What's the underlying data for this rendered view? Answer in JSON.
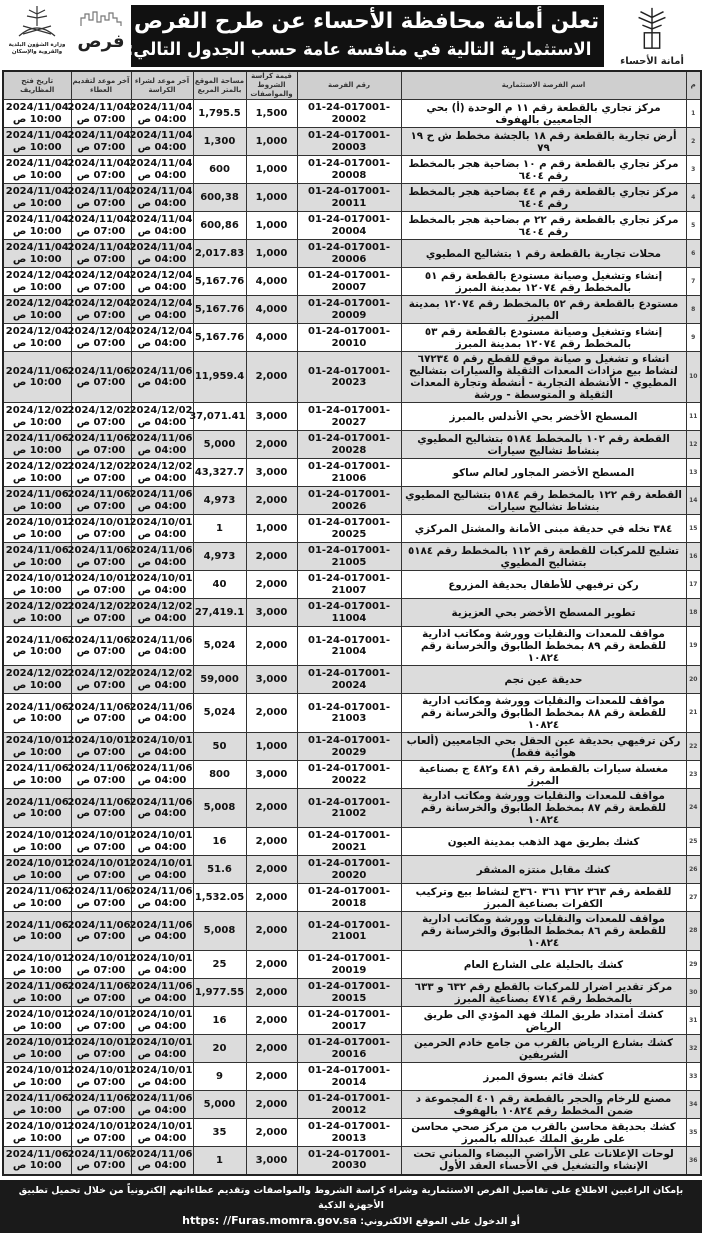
{
  "header": {
    "title_line1": "تعلن أمانة محافظة الأحساء عن طرح الفرص",
    "title_line2": "الاستثمارية التالية في منافسة عامة حسب الجدول التالي:",
    "logo_right": "أمانة الأحساء",
    "logo_furas": "فرص",
    "logo_ministry": "وزارة الشؤون البلدية والقروية والإسكان"
  },
  "columns": {
    "num": "م",
    "name": "اسم الفرصة الاستثمارية",
    "number": "رقم الفرصة",
    "fee": "قيمة كراسة الشروط والمواصفات",
    "area": "مساحة الموقع بالمتر المربع",
    "purchase": "آخر موعد لشراء الكراسة",
    "submit": "آخر موعد لتقديم العطاء",
    "open": "تاريخ فتح المظاريف"
  },
  "times": {
    "purchase": "04:00 ص",
    "submit": "07:00 ص",
    "open": "10:00 ص"
  },
  "rows": [
    {
      "n": "1",
      "name": "مركز تجاري بالقطعة رقم ١١ م الوحدة (أ) بحي الجامعيين بالهفوف",
      "id": "01-24-017001-20002",
      "fee": "1,500",
      "area": "1,795.5",
      "date": "2024/11/04"
    },
    {
      "n": "2",
      "name": "أرض تجارية بالقطعة رقم ١٨ بالجشة مخطط ش ح ١٩ ٧٩",
      "id": "01-24-017001-20003",
      "fee": "1,000",
      "area": "1,300",
      "date": "2024/11/04"
    },
    {
      "n": "3",
      "name": "مركز تجاري بالقطعة رقم م ١٠ بضاحية هجر بالمخطط رقم ٦٤٠٤",
      "id": "01-24-017001-20008",
      "fee": "1,000",
      "area": "600",
      "date": "2024/11/04"
    },
    {
      "n": "4",
      "name": "مركز تجاري بالقطعة رقم م ٤٤ بضاحية هجر بالمخطط رقم ٦٤٠٤",
      "id": "01-24-017001-20011",
      "fee": "1,000",
      "area": "600,38",
      "date": "2024/11/04"
    },
    {
      "n": "5",
      "name": "مركز تجاري بالقطعة رقم ٢٢ م بضاحية هجر بالمخطط رقم ٦٤٠٤",
      "id": "01-24-017001-20004",
      "fee": "1,000",
      "area": "600,86",
      "date": "2024/11/04"
    },
    {
      "n": "6",
      "name": "محلات تجارية بالقطعة رقم ١ بتشاليح المطيوي",
      "id": "01-24-017001-20006",
      "fee": "1,000",
      "area": "2,017.83",
      "date": "2024/11/04"
    },
    {
      "n": "7",
      "name": "إنشاء وتشغيل وصيانة مستودع بالقطعة رقم ٥١ بالمخطط رقم ١٢٠٧٤ بمدينة المبرز",
      "id": "01-24-017001-20007",
      "fee": "4,000",
      "area": "5,167.76",
      "date": "2024/12/04"
    },
    {
      "n": "8",
      "name": "مستودع بالقطعة رقم ٥٢ بالمخطط رقم ١٢٠٧٤ بمدينة المبرز",
      "id": "01-24-017001-20009",
      "fee": "4,000",
      "area": "5,167.76",
      "date": "2024/12/04"
    },
    {
      "n": "9",
      "name": "إنشاء وتشغيل وصيانة مستودع بالقطعة رقم ٥٣ بالمخطط رقم ١٢٠٧٤ بمدينة المبرز",
      "id": "01-24-017001-20010",
      "fee": "4,000",
      "area": "5,167.76",
      "date": "2024/12/04"
    },
    {
      "n": "10",
      "name": "انشاء و تشغيل و صيانة موقع للقطع رقم ٥ ٦٧٢٣٤ لنشاط بيع مزادات المعدات الثقيلة والسيارات بتشاليح المطيوي - الأنشطة التجارية - أنشطة وتجارة المعدات الثقيلة و المتوسطة - ورشة",
      "id": "01-24-017001-20023",
      "fee": "2,000",
      "area": "11,959.4",
      "date": "2024/11/06"
    },
    {
      "n": "11",
      "name": "المسطح الأخضر بحي الأندلس بالمبرز",
      "id": "01-24-017001-20027",
      "fee": "3,000",
      "area": "37,071.41",
      "date": "2024/12/02"
    },
    {
      "n": "12",
      "name": "القطعة رقم ١٠٢ بالمخطط ٥١٨٤ بتشاليح المطيوي بنشاط تشاليح سيارات",
      "id": "01-24-017001-20028",
      "fee": "2,000",
      "area": "5,000",
      "date": "2024/11/06"
    },
    {
      "n": "13",
      "name": "المسطح الأخضر المجاور لعالم ساكو",
      "id": "01-24-017001-21006",
      "fee": "3,000",
      "area": "43,327.7",
      "date": "2024/12/02"
    },
    {
      "n": "14",
      "name": "القطعة رقم ١٢٢ بالمخطط رقم ٥١٨٤ بتشاليح المطيوي بنشاط تشاليح سيارات",
      "id": "01-24-017001-20026",
      "fee": "2,000",
      "area": "4,973",
      "date": "2024/11/06"
    },
    {
      "n": "15",
      "name": "٣٨٤ نخله في حديقة مبنى الأمانة والمشتل المركزي",
      "id": "01-24-017001-20025",
      "fee": "1,000",
      "area": "1",
      "date": "2024/10/01"
    },
    {
      "n": "16",
      "name": "تشليح للمركبات للقطعة رقم ١١٢ بالمخطط رقم ٥١٨٤ بتشاليح المطيوي",
      "id": "01-24-017001-21005",
      "fee": "2,000",
      "area": "4,973",
      "date": "2024/11/06"
    },
    {
      "n": "17",
      "name": "ركن ترفيهي للأطفال بحديقة المزروع",
      "id": "01-24-017001-21007",
      "fee": "2,000",
      "area": "40",
      "date": "2024/10/01"
    },
    {
      "n": "18",
      "name": "تطوير المسطح الأخضر بحي العزيزية",
      "id": "01-24-017001-11004",
      "fee": "3,000",
      "area": "27,419.1",
      "date": "2024/12/02"
    },
    {
      "n": "19",
      "name": "مواقف للمعدات والنقليات وورشة ومكاتب ادارية للقطعة رقم ٨٩ بمخطط الطابوق والخرسانة رقم ١٠٨٢٤",
      "id": "01-24-017001-21004",
      "fee": "2,000",
      "area": "5,024",
      "date": "2024/11/06"
    },
    {
      "n": "20",
      "name": "حديقة عين نجم",
      "id": "01-24-017001-20024",
      "fee": "3,000",
      "area": "59,000",
      "date": "2024/12/02"
    },
    {
      "n": "21",
      "name": "مواقف للمعدات والنقليات وورشة ومكاتب ادارية للقطعة رقم ٨٨ بمخطط الطابوق والخرسانة رقم ١٠٨٢٤",
      "id": "01-24-017001-21003",
      "fee": "2,000",
      "area": "5,024",
      "date": "2024/11/06"
    },
    {
      "n": "22",
      "name": "ركن ترفيهي بحديقة عين الحقل بحي الجامعيين (ألعاب هوائية فقط)",
      "id": "01-24-017001-20029",
      "fee": "1,000",
      "area": "50",
      "date": "2024/10/01"
    },
    {
      "n": "23",
      "name": "مغسلة سيارات بالقطعة رقم ٤٨١ و٤٨٢ ج بصناعية المبرز",
      "id": "01-24-017001-20022",
      "fee": "3,000",
      "area": "800",
      "date": "2024/11/06"
    },
    {
      "n": "24",
      "name": "مواقف للمعدات والنقليات وورشة ومكاتب ادارية للقطعة رقم ٨٧ بمخطط الطابوق والخرسانة رقم ١٠٨٢٤",
      "id": "01-24-017001-21002",
      "fee": "2,000",
      "area": "5,008",
      "date": "2024/11/06"
    },
    {
      "n": "25",
      "name": "كشك بطريق مهد الذهب بمدينة العيون",
      "id": "01-24-017001-20021",
      "fee": "2,000",
      "area": "16",
      "date": "2024/10/01"
    },
    {
      "n": "26",
      "name": "كشك مقابل منتزه المشقر",
      "id": "01-24-017001-20020",
      "fee": "2,000",
      "area": "51.6",
      "date": "2024/10/01"
    },
    {
      "n": "27",
      "name": "للقطعة رقم ٣٦٣ ٣٦٢ ٣٦١ ٣٦٠ج لنشاط بيع وتركيب الكفرات بصناعية المبرز",
      "id": "01-24-017001-20018",
      "fee": "2,000",
      "area": "1,532.05",
      "date": "2024/11/06"
    },
    {
      "n": "28",
      "name": "مواقف للمعدات والنقليات وورشة ومكاتب ادارية للقطعة رقم ٨٦ بمخطط الطابوق والخرسانة رقم ١٠٨٢٤",
      "id": "01-24-017001-21001",
      "fee": "2,000",
      "area": "5,008",
      "date": "2024/11/06"
    },
    {
      "n": "29",
      "name": "كشك بالحليلة على الشارع العام",
      "id": "01-24-017001-20019",
      "fee": "2,000",
      "area": "25",
      "date": "2024/10/01"
    },
    {
      "n": "30",
      "name": "مركز تقدير اضرار للمركبات بالقطع رقم ٦٣٢ و ٦٣٣ بالمخطط رقم ٤٧١٤ بصناعية المبرز",
      "id": "01-24-017001-20015",
      "fee": "2,000",
      "area": "1,977.55",
      "date": "2024/11/06"
    },
    {
      "n": "31",
      "name": "كشك أمتداد طريق الملك فهد المؤدي الى طريق الرياض",
      "id": "01-24-017001-20017",
      "fee": "2,000",
      "area": "16",
      "date": "2024/10/01"
    },
    {
      "n": "32",
      "name": "كشك بشارع الرياض بالقرب من جامع خادم الحرمين الشريفين",
      "id": "01-24-017001-20016",
      "fee": "2,000",
      "area": "20",
      "date": "2024/10/01"
    },
    {
      "n": "33",
      "name": "كشك قائم بسوق المبرز",
      "id": "01-24-017001-20014",
      "fee": "2,000",
      "area": "9",
      "date": "2024/10/01"
    },
    {
      "n": "34",
      "name": "مصنع للرخام والحجر بالقطعة رقم ٤٠١ المجموعة د ضمن المخطط رقم ١٠٨٢٤ بالهفوف",
      "id": "01-24-017001-20012",
      "fee": "2,000",
      "area": "5,000",
      "date": "2024/11/06"
    },
    {
      "n": "35",
      "name": "كشك بحديقة محاسن بالقرب من مركز صحي محاسن على طريق الملك عبدالله بالمبرز",
      "id": "01-24-017001-20013",
      "fee": "2,000",
      "area": "35",
      "date": "2024/10/01"
    },
    {
      "n": "36",
      "name": "لوحات الإعلانات على الأراضي البيضاء والمباني تحت الإنشاء والتشغيل في الأحساء العقد الأول",
      "id": "01-24-017001-20030",
      "fee": "3,000",
      "area": "1",
      "date": "2024/11/06"
    }
  ],
  "footer": {
    "line1": "بإمكان الراغبين الاطلاع على تفاصيل الفرص الاستثمارية وشراء كراسة الشروط والمواصفات وتقديم عطاءاتهم إلكترونياً من خلال تحميل تطبيق الأجهزة الذكية",
    "line2": "أو الدخول على الموقع الالكتروني:",
    "url": "https: //Furas.momra.gov.sa"
  }
}
